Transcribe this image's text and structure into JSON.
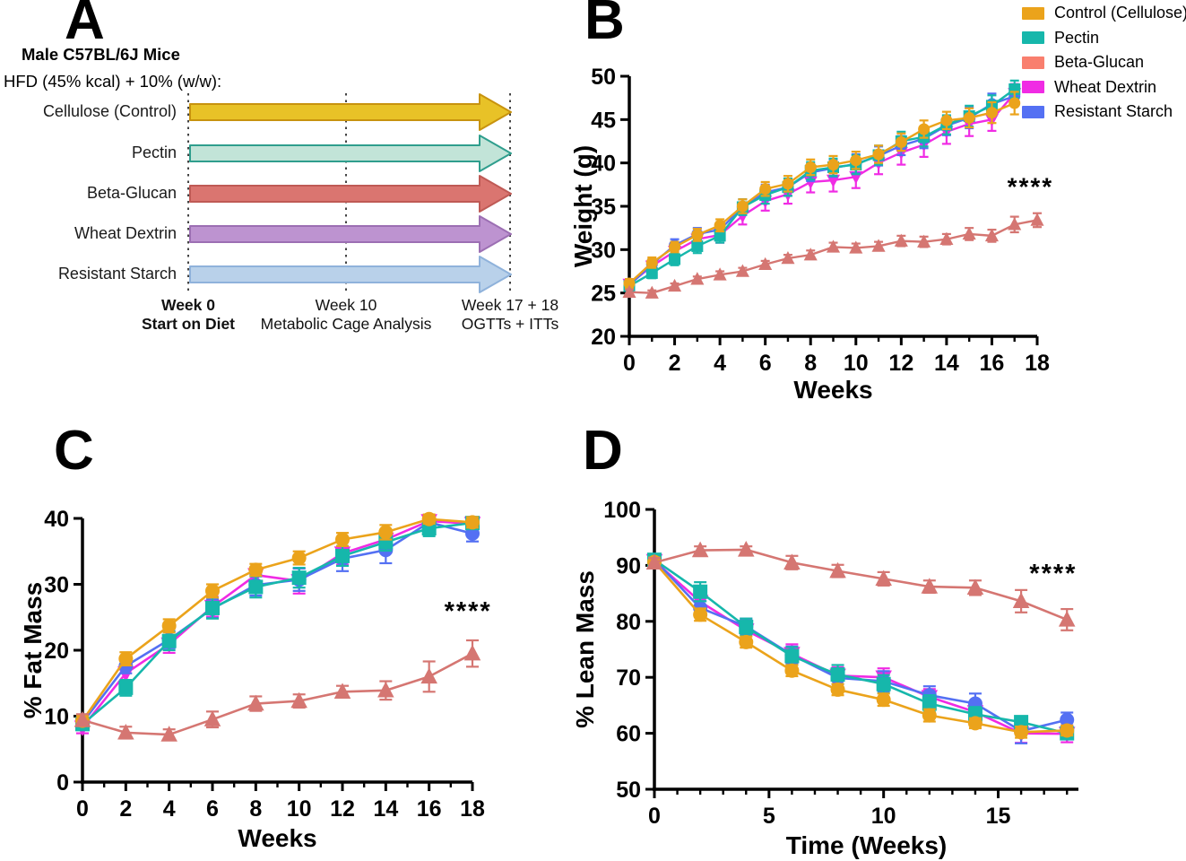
{
  "figure": {
    "panel_a": {
      "label": "A",
      "line1": "Male C57BL/6J Mice",
      "line2": "HFD (45% kcal) + 10% (w/w):",
      "groups": [
        {
          "label": "Cellulose (Control)",
          "fill": "#E8C227",
          "stroke": "#C8930E"
        },
        {
          "label": "Pectin",
          "fill": "#C2E4D8",
          "stroke": "#2F9E8D"
        },
        {
          "label": "Beta-Glucan",
          "fill": "#DA7570",
          "stroke": "#BF5A55"
        },
        {
          "label": "Wheat Dextrin",
          "fill": "#BD93D0",
          "stroke": "#9C6FB3"
        },
        {
          "label": "Resistant Starch",
          "fill": "#B9D1EA",
          "stroke": "#8FB2DB"
        }
      ],
      "milestones": [
        {
          "title": "Week 0",
          "subtitle": "Start on Diet",
          "bold": true
        },
        {
          "title": "Week 10",
          "subtitle": "Metabolic Cage Analysis",
          "bold": false
        },
        {
          "title": "Week 17 + 18",
          "subtitle": "OGTTs + ITTs",
          "bold": false
        }
      ]
    },
    "legend": {
      "items": [
        {
          "label": "Control (Cellulose)",
          "color": "#EBA31B"
        },
        {
          "label": "Pectin",
          "color": "#16B7AB"
        },
        {
          "label": "Beta-Glucan",
          "color": "#F97F6E"
        },
        {
          "label": "Wheat Dextrin",
          "color": "#F02BE4"
        },
        {
          "label": "Resistant Starch",
          "color": "#5470F3"
        }
      ]
    }
  },
  "chart_data": [
    {
      "id": "weight",
      "type": "line",
      "panel_label": "B",
      "title": "",
      "xlabel": "Weeks",
      "ylabel": "Weight (g)",
      "xlim": [
        0,
        18
      ],
      "ylim": [
        20,
        50
      ],
      "xticks": [
        0,
        2,
        4,
        6,
        8,
        10,
        12,
        14,
        16,
        18
      ],
      "xminor": 1,
      "yticks": [
        20,
        25,
        30,
        35,
        40,
        45,
        50
      ],
      "grid": false,
      "legend_position": "top-right",
      "annotation": {
        "text": "****",
        "x": 17.7,
        "y": 36.3
      },
      "series": [
        {
          "name": "Control (Cellulose)",
          "color": "#EBA31B",
          "marker": "circle",
          "x": [
            0,
            1,
            2,
            3,
            4,
            5,
            6,
            7,
            8,
            9,
            10,
            11,
            12,
            13,
            14,
            15,
            16,
            17
          ],
          "y": [
            26.1,
            28.5,
            30.3,
            31.7,
            32.8,
            35.0,
            37.0,
            37.6,
            39.5,
            39.8,
            40.3,
            41.0,
            42.4,
            43.9,
            44.9,
            45.2,
            45.8,
            46.9
          ],
          "err": [
            0.5,
            0.6,
            0.6,
            0.7,
            0.7,
            0.8,
            0.8,
            0.9,
            0.9,
            1.0,
            1.0,
            1.0,
            1.0,
            1.0,
            1.0,
            1.1,
            1.2,
            1.3
          ]
        },
        {
          "name": "Pectin",
          "color": "#16B7AB",
          "marker": "square",
          "x": [
            0,
            1,
            2,
            3,
            4,
            5,
            6,
            7,
            8,
            9,
            10,
            11,
            12,
            13,
            14,
            15,
            16,
            17
          ],
          "y": [
            25.8,
            27.3,
            28.9,
            30.4,
            31.6,
            34.9,
            36.3,
            37.2,
            39.1,
            39.5,
            39.8,
            40.9,
            42.5,
            43.0,
            44.4,
            45.4,
            46.6,
            48.5
          ],
          "err": [
            0.5,
            0.6,
            0.7,
            0.8,
            0.8,
            0.9,
            1.0,
            1.0,
            1.0,
            1.0,
            1.1,
            1.1,
            1.1,
            1.1,
            1.1,
            1.2,
            1.2,
            1.0
          ]
        },
        {
          "name": "Beta-Glucan",
          "color": "#D57672",
          "marker": "triangle-up",
          "x": [
            0,
            1,
            2,
            3,
            4,
            5,
            6,
            7,
            8,
            9,
            10,
            11,
            12,
            13,
            14,
            15,
            16,
            17,
            18
          ],
          "y": [
            25.1,
            25.0,
            25.8,
            26.6,
            27.1,
            27.5,
            28.3,
            29.0,
            29.4,
            30.3,
            30.2,
            30.4,
            31.0,
            30.9,
            31.2,
            31.8,
            31.6,
            32.9,
            33.4
          ],
          "err": [
            0.3,
            0.3,
            0.3,
            0.3,
            0.4,
            0.4,
            0.4,
            0.4,
            0.5,
            0.5,
            0.5,
            0.5,
            0.6,
            0.6,
            0.6,
            0.7,
            0.7,
            0.9,
            0.8
          ]
        },
        {
          "name": "Wheat Dextrin",
          "color": "#F02BE4",
          "marker": "triangle-down",
          "x": [
            0,
            1,
            2,
            3,
            4,
            5,
            6,
            7,
            8,
            9,
            10,
            11,
            12,
            13,
            14,
            15,
            16,
            17
          ],
          "y": [
            26.0,
            28.1,
            29.8,
            31.2,
            31.7,
            33.9,
            35.6,
            36.4,
            37.8,
            38.0,
            38.4,
            40.0,
            41.2,
            42.1,
            43.6,
            44.5,
            45.0,
            48.0
          ],
          "err": [
            0.6,
            0.7,
            0.8,
            0.8,
            0.9,
            1.0,
            1.1,
            1.1,
            1.2,
            1.3,
            1.3,
            1.3,
            1.4,
            1.4,
            1.4,
            1.4,
            1.3,
            1.1
          ]
        },
        {
          "name": "Resistant Starch",
          "color": "#5470F3",
          "marker": "circle",
          "x": [
            0,
            1,
            2,
            3,
            4,
            5,
            6,
            7,
            8,
            9,
            10,
            11,
            12,
            13,
            14,
            15,
            16,
            17
          ],
          "y": [
            25.9,
            28.3,
            30.5,
            31.8,
            32.3,
            34.9,
            36.6,
            37.2,
            38.9,
            39.4,
            39.9,
            40.8,
            42.0,
            42.8,
            44.3,
            45.2,
            46.8,
            47.7
          ],
          "err": [
            0.5,
            0.6,
            0.7,
            0.7,
            0.8,
            0.9,
            0.9,
            1.0,
            1.0,
            1.0,
            1.1,
            1.1,
            1.1,
            1.1,
            1.1,
            1.2,
            1.2,
            1.0
          ]
        }
      ]
    },
    {
      "id": "fat-mass",
      "type": "line",
      "panel_label": "C",
      "title": "",
      "xlabel": "Weeks",
      "ylabel": "% Fat Mass",
      "xlim": [
        0,
        18
      ],
      "ylim": [
        0,
        40
      ],
      "xticks": [
        0,
        2,
        4,
        6,
        8,
        10,
        12,
        14,
        16,
        18
      ],
      "xminor": 1,
      "yticks": [
        0,
        10,
        20,
        30,
        40
      ],
      "grid": false,
      "annotation": {
        "text": "****",
        "x": 17.8,
        "y": 24.6
      },
      "series": [
        {
          "name": "Control (Cellulose)",
          "color": "#EBA31B",
          "marker": "circle",
          "x": [
            0,
            2,
            4,
            6,
            8,
            10,
            12,
            14,
            16,
            18
          ],
          "y": [
            9.3,
            18.7,
            23.7,
            29.0,
            32.2,
            34.0,
            36.8,
            37.9,
            39.9,
            39.4
          ],
          "err": [
            0.8,
            1.0,
            1.0,
            1.0,
            0.9,
            1.0,
            1.0,
            1.1,
            0.7,
            0.8
          ]
        },
        {
          "name": "Pectin",
          "color": "#16B7AB",
          "marker": "square",
          "x": [
            0,
            2,
            4,
            6,
            8,
            10,
            12,
            14,
            16,
            18
          ],
          "y": [
            8.8,
            14.3,
            21.4,
            26.4,
            29.6,
            31.0,
            34.3,
            36.4,
            38.5,
            39.3
          ],
          "err": [
            0.9,
            1.2,
            1.4,
            1.6,
            1.6,
            1.5,
            1.5,
            1.3,
            1.2,
            0.9
          ]
        },
        {
          "name": "Beta-Glucan",
          "color": "#D57672",
          "marker": "triangle-up",
          "x": [
            0,
            2,
            4,
            6,
            8,
            10,
            12,
            14,
            16,
            18
          ],
          "y": [
            9.4,
            7.5,
            7.2,
            9.5,
            11.9,
            12.3,
            13.7,
            13.9,
            16.0,
            19.5
          ],
          "err": [
            0.9,
            0.9,
            0.8,
            1.2,
            1.1,
            1.0,
            0.9,
            1.4,
            2.3,
            2.0
          ]
        },
        {
          "name": "Wheat Dextrin",
          "color": "#F02BE4",
          "marker": "triangle-down",
          "x": [
            0,
            2,
            4,
            6,
            8,
            10,
            12,
            14,
            16,
            18
          ],
          "y": [
            8.3,
            16.5,
            20.9,
            26.6,
            31.4,
            30.5,
            34.7,
            36.8,
            39.6,
            39.2
          ],
          "err": [
            0.9,
            1.4,
            1.3,
            1.5,
            1.2,
            1.9,
            1.7,
            1.4,
            0.8,
            0.9
          ]
        },
        {
          "name": "Resistant Starch",
          "color": "#5470F3",
          "marker": "circle",
          "x": [
            0,
            2,
            4,
            6,
            8,
            10,
            12,
            14,
            16,
            18
          ],
          "y": [
            9.0,
            17.6,
            21.6,
            26.3,
            29.9,
            30.7,
            33.9,
            35.2,
            39.4,
            37.7
          ],
          "err": [
            1.0,
            1.1,
            1.3,
            1.4,
            1.6,
            1.7,
            1.9,
            2.0,
            0.9,
            1.2
          ]
        }
      ]
    },
    {
      "id": "lean-mass",
      "type": "line",
      "panel_label": "D",
      "title": "",
      "xlabel": "Time (Weeks)",
      "ylabel": "% Lean Mass",
      "xlim": [
        0,
        18.5
      ],
      "ylim": [
        50,
        100
      ],
      "xticks": [
        0,
        5,
        10,
        15
      ],
      "xminor": 1,
      "yticks": [
        50,
        60,
        70,
        80,
        90,
        100
      ],
      "grid": false,
      "annotation": {
        "text": "****",
        "x": 17.4,
        "y": 87.0
      },
      "series": [
        {
          "name": "Control (Cellulose)",
          "color": "#EBA31B",
          "marker": "circle",
          "x": [
            0,
            2,
            4,
            6,
            8,
            10,
            12,
            14,
            16,
            18
          ],
          "y": [
            90.6,
            81.2,
            76.3,
            71.2,
            67.8,
            66.0,
            63.2,
            61.8,
            60.2,
            60.5
          ],
          "err": [
            0.8,
            1.1,
            1.0,
            1.0,
            1.0,
            1.1,
            1.1,
            0.9,
            1.0,
            0.9
          ]
        },
        {
          "name": "Pectin",
          "color": "#16B7AB",
          "marker": "square",
          "x": [
            0,
            2,
            4,
            6,
            8,
            10,
            12,
            14,
            16,
            18
          ],
          "y": [
            91.0,
            85.3,
            79.0,
            73.8,
            70.5,
            68.8,
            65.3,
            63.4,
            62.0,
            60.0
          ],
          "err": [
            0.9,
            1.7,
            1.5,
            1.6,
            1.7,
            1.6,
            1.5,
            1.3,
            1.0,
            0.8
          ]
        },
        {
          "name": "Beta-Glucan",
          "color": "#D57672",
          "marker": "triangle-up",
          "x": [
            0,
            2,
            4,
            6,
            8,
            10,
            12,
            14,
            16,
            18
          ],
          "y": [
            90.5,
            92.7,
            92.8,
            90.5,
            89.0,
            87.6,
            86.2,
            86.0,
            83.6,
            80.3
          ],
          "err": [
            0.8,
            0.7,
            0.6,
            1.2,
            1.1,
            1.2,
            1.1,
            1.3,
            2.0,
            1.9
          ]
        },
        {
          "name": "Wheat Dextrin",
          "color": "#F02BE4",
          "marker": "triangle-down",
          "x": [
            0,
            2,
            4,
            6,
            8,
            10,
            12,
            14,
            16,
            18
          ],
          "y": [
            90.8,
            83.5,
            78.4,
            74.2,
            70.3,
            70.0,
            66.5,
            63.8,
            60.0,
            59.9
          ],
          "err": [
            0.9,
            1.3,
            1.8,
            1.7,
            1.5,
            1.6,
            1.4,
            1.3,
            1.7,
            1.5
          ]
        },
        {
          "name": "Resistant Starch",
          "color": "#5470F3",
          "marker": "circle",
          "x": [
            0,
            2,
            4,
            6,
            8,
            10,
            12,
            14,
            16,
            18
          ],
          "y": [
            91.0,
            82.4,
            79.1,
            74.0,
            69.9,
            69.3,
            66.8,
            65.3,
            60.4,
            62.4
          ],
          "err": [
            0.8,
            1.2,
            1.4,
            1.5,
            1.7,
            1.8,
            1.6,
            1.8,
            2.2,
            1.3
          ]
        }
      ]
    }
  ]
}
